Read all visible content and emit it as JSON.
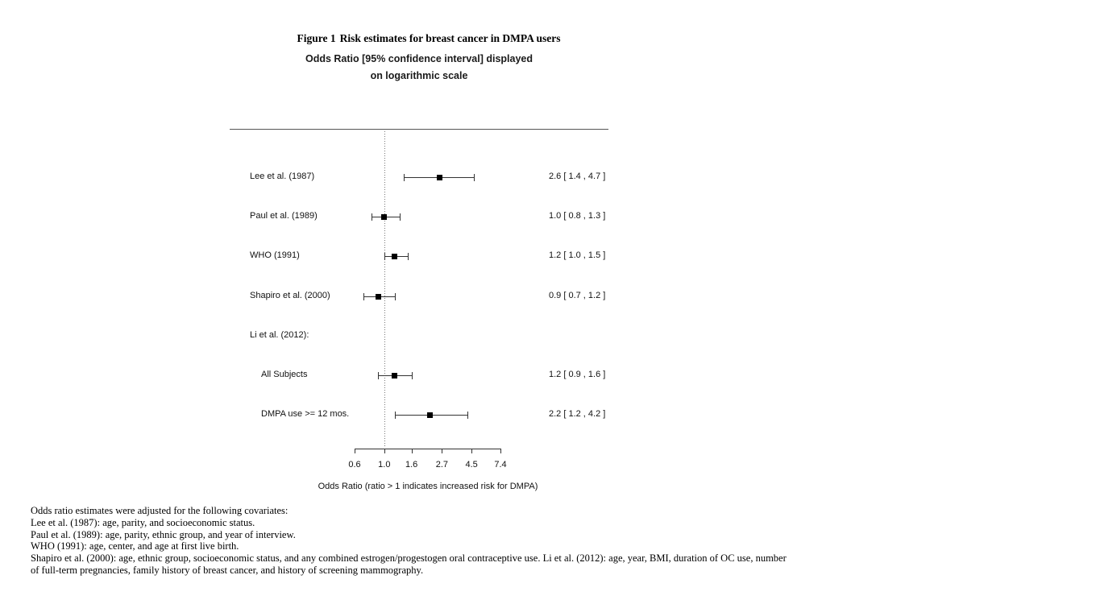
{
  "figure": {
    "title_prefix": "Figure 1",
    "title": "Risk estimates for breast cancer in DMPA users",
    "subtitle_line1": "Odds Ratio [95% confidence interval] displayed",
    "subtitle_line2": "on logarithmic scale"
  },
  "chart_data": {
    "type": "forest-plot",
    "scale": "logarithmic",
    "reference_line": 1.0,
    "grid": false,
    "legend": "none",
    "xlim": [
      0.6,
      7.4
    ],
    "x_ticks": [
      "0.6",
      "1.0",
      "1.6",
      "2.7",
      "4.5",
      "7.4"
    ],
    "xlabel": "Odds Ratio (ratio > 1 indicates increased risk for DMPA)",
    "rows": [
      {
        "label": "Lee et al. (1987)",
        "indent": false,
        "or": 2.6,
        "ci_low": 1.4,
        "ci_high": 4.7,
        "estimate_text": "2.6 [ 1.4 , 4.7 ]"
      },
      {
        "label": "Paul et al. (1989)",
        "indent": false,
        "or": 1.0,
        "ci_low": 0.8,
        "ci_high": 1.3,
        "estimate_text": "1.0 [ 0.8 , 1.3 ]"
      },
      {
        "label": "WHO (1991)",
        "indent": false,
        "or": 1.2,
        "ci_low": 1.0,
        "ci_high": 1.5,
        "estimate_text": "1.2 [ 1.0 , 1.5 ]"
      },
      {
        "label": "Shapiro et al. (2000)",
        "indent": false,
        "or": 0.9,
        "ci_low": 0.7,
        "ci_high": 1.2,
        "estimate_text": "0.9 [ 0.7 , 1.2 ]"
      },
      {
        "label": "Li et al. (2012):",
        "indent": false,
        "group_header": true
      },
      {
        "label": "All Subjects",
        "indent": true,
        "or": 1.2,
        "ci_low": 0.9,
        "ci_high": 1.6,
        "estimate_text": "1.2 [ 0.9 , 1.6 ]"
      },
      {
        "label": "DMPA use >= 12 mos.",
        "indent": true,
        "or": 2.2,
        "ci_low": 1.2,
        "ci_high": 4.2,
        "estimate_text": "2.2 [ 1.2 , 4.2 ]"
      }
    ]
  },
  "footnotes": [
    "Odds ratio estimates were adjusted for the following covariates:",
    "Lee et al. (1987): age, parity, and socioeconomic status.",
    "Paul et al. (1989): age, parity, ethnic group, and year of interview.",
    "WHO (1991): age, center, and age at first live birth.",
    "Shapiro et al. (2000): age, ethnic group, socioeconomic status, and any combined estrogen/progestogen oral contraceptive use. Li et al. (2012): age, year, BMI, duration of OC use, number",
    "of full-term pregnancies, family history of breast cancer, and history of screening mammography."
  ]
}
